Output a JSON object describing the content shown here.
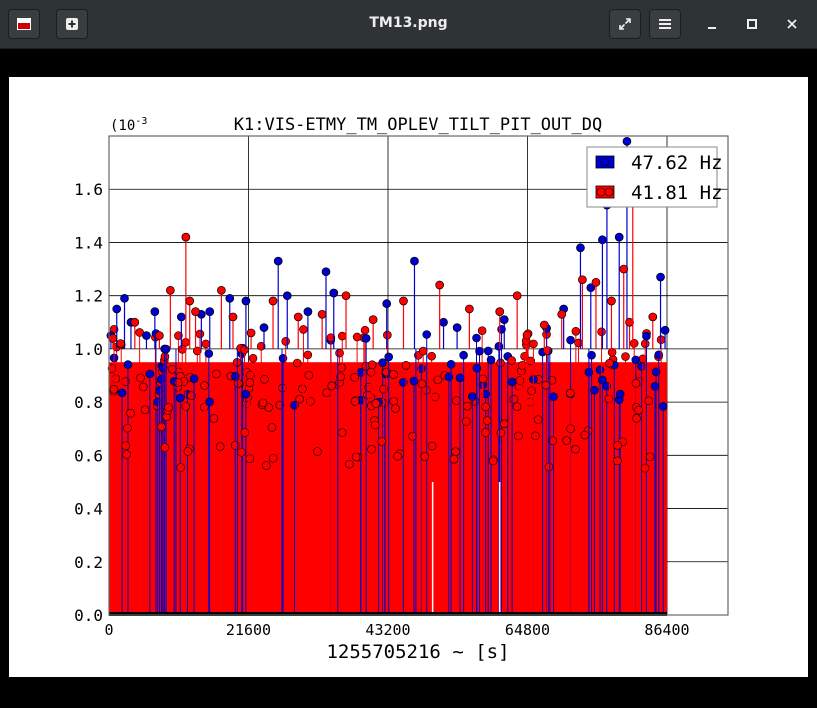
{
  "window": {
    "title": "TM13.png",
    "app_icon": "image-viewer-icon",
    "new_button_icon": "plus-square-icon",
    "fullscreen_icon": "expand-icon",
    "menu_icon": "hamburger-icon",
    "minimize_icon": "minimize-icon",
    "maximize_icon": "maximize-icon",
    "close_icon": "close-icon"
  },
  "chart_data": {
    "type": "scatter",
    "title": "K1:VIS-ETMY_TM_OPLEV_TILT_PIT_OUT_DQ",
    "xlabel": "1255705216 ~ [s]",
    "ylabel": "",
    "y_scale_label": "(10",
    "y_scale_exp": "-3",
    "xlim": [
      0,
      86400
    ],
    "ylim": [
      0,
      1.8
    ],
    "x_ticks": [
      "0",
      "21600",
      "43200",
      "64800",
      "86400"
    ],
    "y_ticks": [
      "0.0",
      "0.2",
      "0.4",
      "0.6",
      "0.8",
      "1.0",
      "1.2",
      "1.4",
      "1.6"
    ],
    "grid": true,
    "legend_position": "top-right",
    "series": [
      {
        "name": "47.62 Hz",
        "color": "#0000cc",
        "x": [
          300,
          1200,
          2400,
          3400,
          5800,
          7100,
          11200,
          14300,
          15600,
          18700,
          21200,
          24000,
          26200,
          27600,
          30800,
          33600,
          34800,
          43000,
          47300,
          51800,
          53900,
          61200,
          70400,
          73000,
          74600,
          76400,
          77100,
          79000,
          80200,
          85400,
          86100
        ],
        "y": [
          1.05,
          1.15,
          1.19,
          1.1,
          1.05,
          1.14,
          1.12,
          1.13,
          1.14,
          1.19,
          1.18,
          1.08,
          1.33,
          1.2,
          1.14,
          1.29,
          1.21,
          1.17,
          1.33,
          1.1,
          1.08,
          1.11,
          1.15,
          1.38,
          1.23,
          1.41,
          1.54,
          1.42,
          1.78,
          1.27,
          1.07
        ]
      },
      {
        "name": "41.81 Hz",
        "color": "#ff0000",
        "x": [
          600,
          1800,
          4000,
          7800,
          9500,
          11900,
          12500,
          13400,
          17400,
          19200,
          22000,
          25400,
          29300,
          33000,
          36700,
          40900,
          45600,
          51200,
          55800,
          60500,
          63200,
          67400,
          70100,
          73300,
          75400,
          77800,
          79700,
          80600,
          81100,
          84200
        ],
        "y": [
          1.04,
          1.02,
          1.1,
          1.05,
          1.22,
          1.42,
          1.18,
          1.14,
          1.22,
          1.12,
          1.06,
          1.18,
          1.12,
          1.13,
          1.2,
          1.11,
          1.18,
          1.24,
          1.15,
          1.14,
          1.2,
          1.09,
          1.13,
          1.26,
          1.25,
          1.18,
          1.3,
          1.1,
          1.65,
          1.12
        ]
      }
    ]
  }
}
